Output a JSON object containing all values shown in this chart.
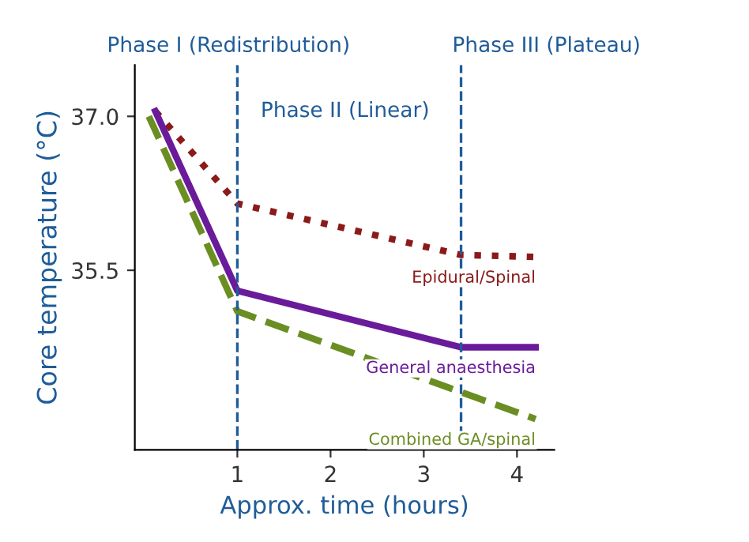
{
  "chart_data": {
    "type": "line",
    "xlabel": "Approx. time (hours)",
    "ylabel": "Core temperature (°C)",
    "xlim": [
      -0.1,
      4.4
    ],
    "ylim": [
      33.75,
      37.5
    ],
    "xticks": [
      1,
      2,
      3,
      4
    ],
    "yticks": [
      {
        "value": 35.5,
        "label": "35.5"
      },
      {
        "value": 37.0,
        "label": "37.0"
      }
    ],
    "grid": false,
    "legend": false,
    "series": [
      {
        "name": "Epidural/Spinal",
        "color": "#8b1a1a",
        "line_style": "dotted",
        "x": [
          0.12,
          1.0,
          3.4,
          4.2
        ],
        "values": [
          37.05,
          36.15,
          35.65,
          35.63
        ]
      },
      {
        "name": "General anaesthesia",
        "color": "#6a1b9a",
        "line_style": "solid",
        "x": [
          0.12,
          1.0,
          3.4,
          4.2
        ],
        "values": [
          37.05,
          35.3,
          34.75,
          34.75
        ]
      },
      {
        "name": "Combined GA/spinal",
        "color": "#6b8e23",
        "line_style": "dashed",
        "x": [
          0.05,
          1.0,
          4.2
        ],
        "values": [
          37.0,
          35.1,
          34.05
        ]
      }
    ],
    "ref_lines": [
      {
        "axis": "x",
        "value": 1,
        "label": "Phase I (Redistribution)",
        "color": "#1f5c99",
        "line_style": "dashed"
      },
      {
        "axis": "x",
        "value": 3.4,
        "label": "Phase III (Plateau)",
        "color": "#1f5c99",
        "line_style": "dashed"
      }
    ],
    "annotations": [
      "Phase II (Linear)"
    ]
  }
}
